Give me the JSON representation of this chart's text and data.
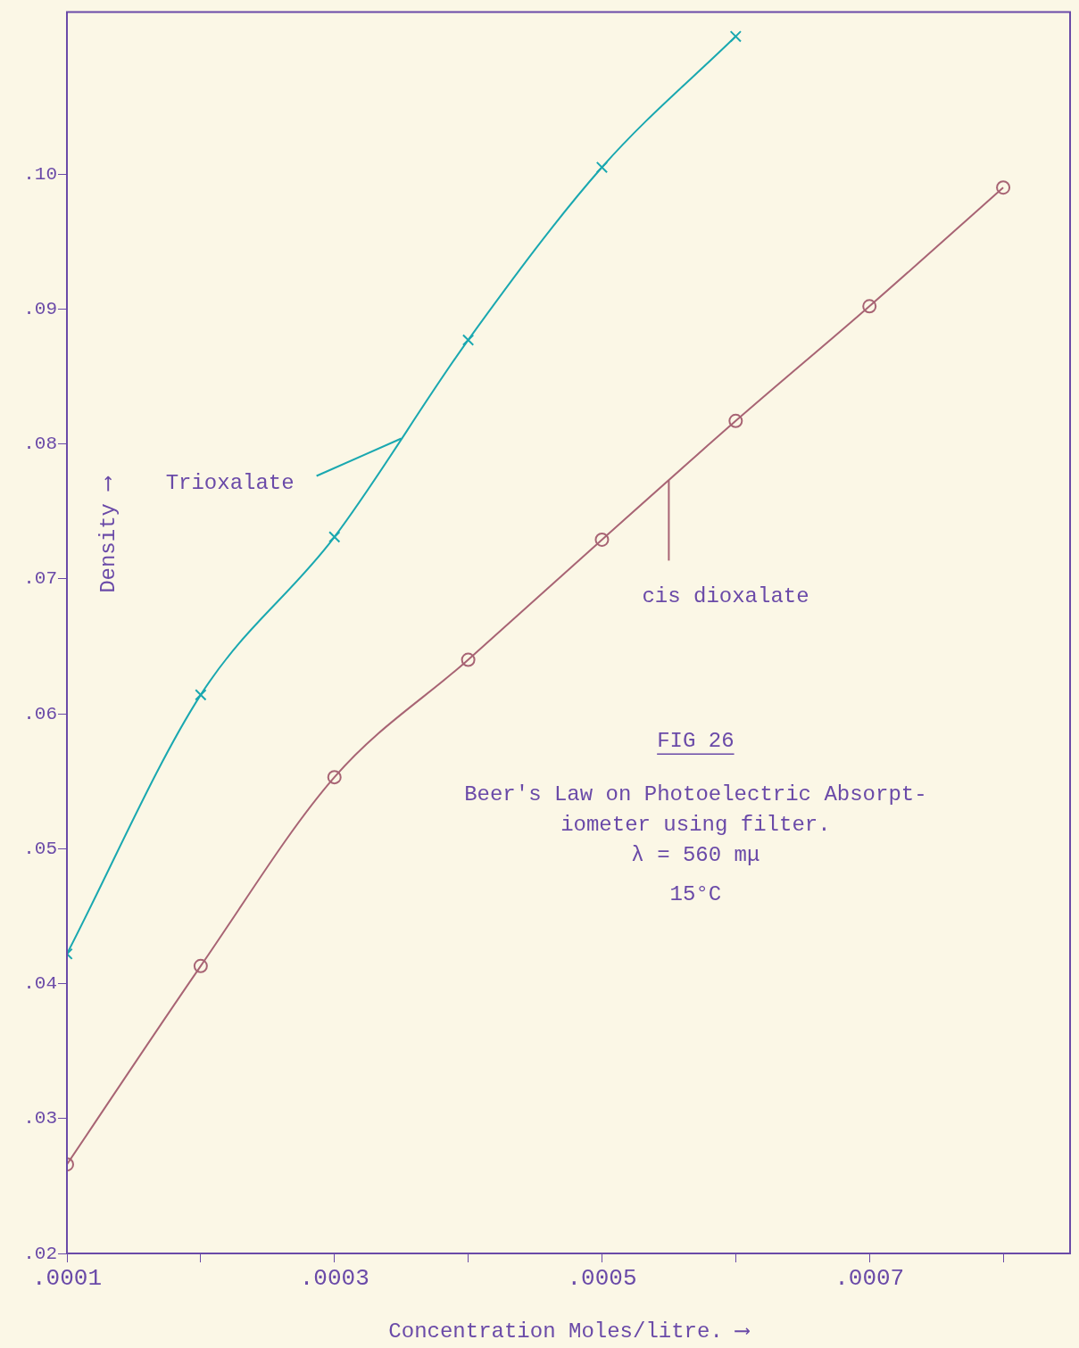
{
  "chart_data": {
    "type": "line",
    "xlabel": "Concentration Moles/litre. ⟶",
    "ylabel": "Density ⟶",
    "xlim": [
      0.0001,
      0.00085
    ],
    "ylim": [
      0.02,
      0.112
    ],
    "xticks": [
      {
        "value": 0.0001,
        "label": ".0001"
      },
      {
        "value": 0.0002,
        "label": null
      },
      {
        "value": 0.0003,
        "label": ".0003"
      },
      {
        "value": 0.0004,
        "label": null
      },
      {
        "value": 0.0005,
        "label": ".0005"
      },
      {
        "value": 0.0006,
        "label": null
      },
      {
        "value": 0.0007,
        "label": ".0007"
      },
      {
        "value": 0.0008,
        "label": null
      }
    ],
    "yticks": [
      {
        "value": 0.02,
        "label": ".02"
      },
      {
        "value": 0.03,
        "label": ".03"
      },
      {
        "value": 0.04,
        "label": ".04"
      },
      {
        "value": 0.05,
        "label": ".05"
      },
      {
        "value": 0.06,
        "label": ".06"
      },
      {
        "value": 0.07,
        "label": ".07"
      },
      {
        "value": 0.08,
        "label": ".08"
      },
      {
        "value": 0.09,
        "label": ".09"
      },
      {
        "value": 0.1,
        "label": ".10"
      }
    ],
    "grid": false,
    "legend": false,
    "line_style": "solid",
    "series": [
      {
        "name": "Trioxalate",
        "color": "#1aa8b0",
        "marker": "cross",
        "x": [
          0.0001,
          0.0002,
          0.0003,
          0.0004,
          0.0005,
          0.0006
        ],
        "values": [
          0.0422,
          0.0614,
          0.0731,
          0.0877,
          0.1005,
          0.1102
        ]
      },
      {
        "name": "cis dioxalate",
        "color": "#a86474",
        "marker": "circle",
        "x": [
          0.0001,
          0.0002,
          0.0003,
          0.0004,
          0.0005,
          0.0006,
          0.0007,
          0.0008
        ],
        "values": [
          0.0266,
          0.0413,
          0.0553,
          0.064,
          0.0729,
          0.0817,
          0.0902,
          0.099
        ]
      }
    ],
    "annotations": [
      "FIG 26",
      "Beer's Law on Photoelectric Absorpt-",
      "iometer using filter.",
      "λ = 560 mμ",
      "15°C"
    ]
  }
}
